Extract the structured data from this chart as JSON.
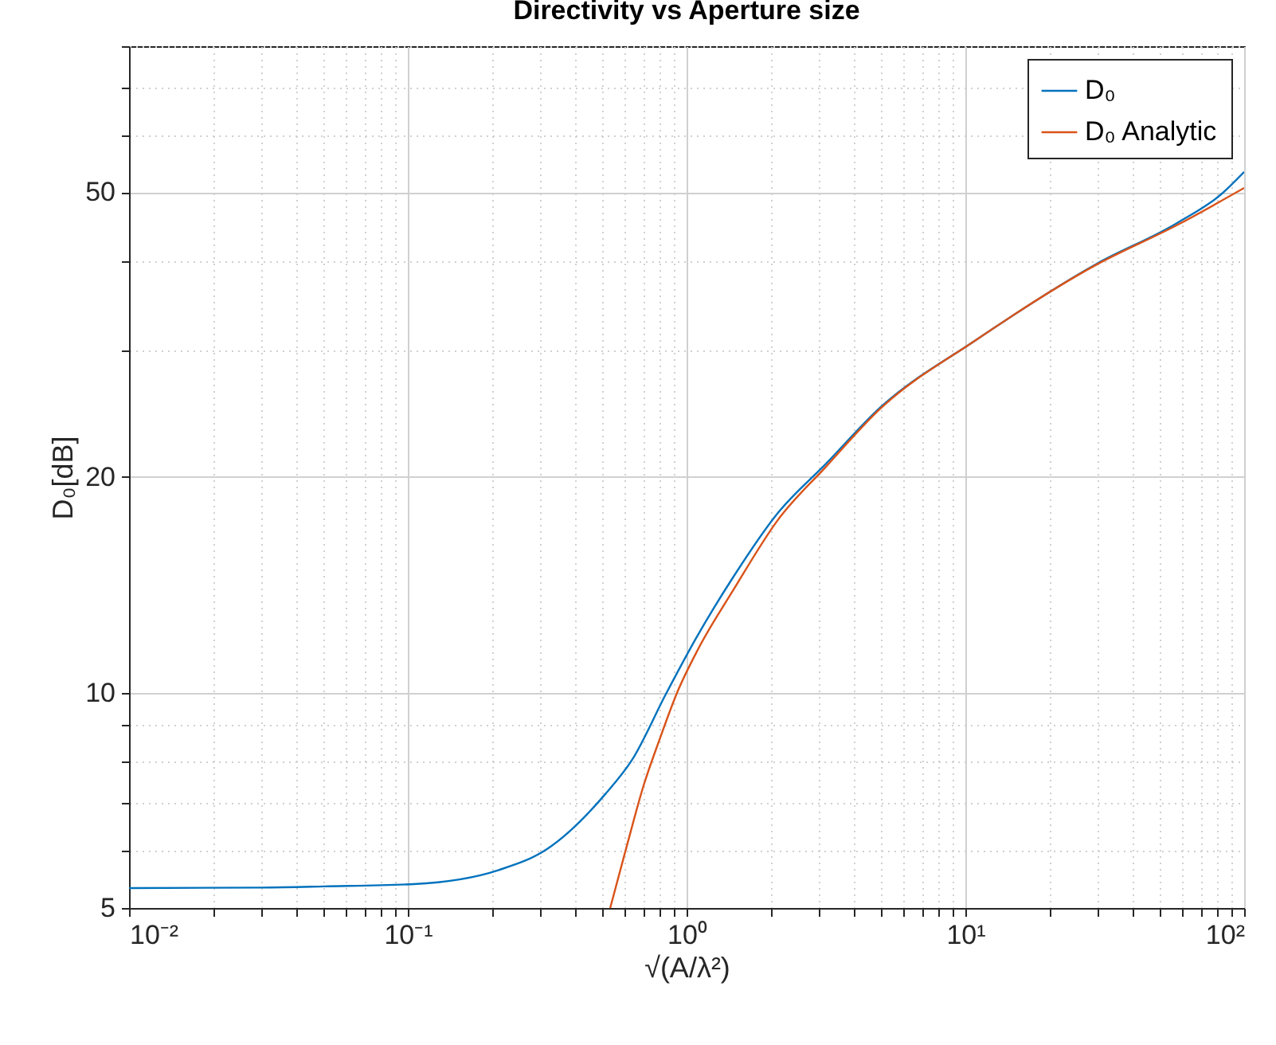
{
  "chart_data": {
    "type": "line",
    "title": "Directivity vs Aperture size",
    "xlabel": "√(A/λ²)",
    "ylabel": "D₀[dB]",
    "log": "xy",
    "grid": true,
    "legend": "top right",
    "marker": "none",
    "line_style": "solid",
    "xlim": [
      0.01,
      100
    ],
    "ylim": [
      5,
      80
    ],
    "xticks": [
      {
        "value": 0.01,
        "label": "10⁻²"
      },
      {
        "value": 0.02,
        "label": null
      },
      {
        "value": 0.03,
        "label": null
      },
      {
        "value": 0.04,
        "label": null
      },
      {
        "value": 0.05,
        "label": null
      },
      {
        "value": 0.06,
        "label": null
      },
      {
        "value": 0.07,
        "label": null
      },
      {
        "value": 0.08,
        "label": null
      },
      {
        "value": 0.09,
        "label": null
      },
      {
        "value": 0.1,
        "label": "10⁻¹"
      },
      {
        "value": 0.2,
        "label": null
      },
      {
        "value": 0.3,
        "label": null
      },
      {
        "value": 0.4,
        "label": null
      },
      {
        "value": 0.5,
        "label": null
      },
      {
        "value": 0.6,
        "label": null
      },
      {
        "value": 0.7,
        "label": null
      },
      {
        "value": 0.8,
        "label": null
      },
      {
        "value": 0.9,
        "label": null
      },
      {
        "value": 1,
        "label": "10⁰"
      },
      {
        "value": 2,
        "label": null
      },
      {
        "value": 3,
        "label": null
      },
      {
        "value": 4,
        "label": null
      },
      {
        "value": 5,
        "label": null
      },
      {
        "value": 6,
        "label": null
      },
      {
        "value": 7,
        "label": null
      },
      {
        "value": 8,
        "label": null
      },
      {
        "value": 9,
        "label": null
      },
      {
        "value": 10,
        "label": "10¹"
      },
      {
        "value": 20,
        "label": null
      },
      {
        "value": 30,
        "label": null
      },
      {
        "value": 40,
        "label": null
      },
      {
        "value": 50,
        "label": null
      },
      {
        "value": 60,
        "label": null
      },
      {
        "value": 70,
        "label": null
      },
      {
        "value": 80,
        "label": null
      },
      {
        "value": 90,
        "label": null
      },
      {
        "value": 100,
        "label": "10²"
      }
    ],
    "yticks": [
      5,
      {
        "value": 6,
        "label": null
      },
      {
        "value": 7,
        "label": null
      },
      {
        "value": 8,
        "label": null
      },
      {
        "value": 9,
        "label": null
      },
      10,
      20,
      {
        "value": 30,
        "label": null
      },
      {
        "value": 40,
        "label": null
      },
      50,
      {
        "value": 60,
        "label": null
      },
      {
        "value": 70,
        "label": null
      },
      {
        "value": 80,
        "label": null
      }
    ],
    "series": [
      {
        "name": "D₀",
        "color": "#0072bd",
        "x": [
          0.01,
          0.03,
          0.05,
          0.105,
          0.212,
          0.315,
          0.512,
          0.637,
          0.846,
          1.08,
          1.47,
          2.12,
          3.17,
          4.94,
          10.8,
          29.5,
          57.5,
          82.8,
          100
        ],
        "values": [
          5.33,
          5.34,
          5.36,
          5.4,
          5.65,
          6.04,
          7.22,
          8.05,
          9.98,
          11.9,
          14.5,
          17.8,
          20.9,
          25,
          31,
          39.7,
          45.3,
          49.7,
          53.4
        ]
      },
      {
        "name": "D₀ Analytic",
        "color": "#d95319",
        "x": [
          0.532,
          0.61,
          0.7,
          0.8,
          0.925,
          1.1,
          1.47,
          2.12,
          3.17,
          4.94,
          10.8,
          29.5,
          57.5,
          100
        ],
        "values": [
          5.0,
          6.1,
          7.4,
          8.6,
          10,
          11.5,
          13.9,
          17.4,
          20.7,
          24.9,
          31,
          39.6,
          45,
          50.7
        ]
      }
    ]
  }
}
